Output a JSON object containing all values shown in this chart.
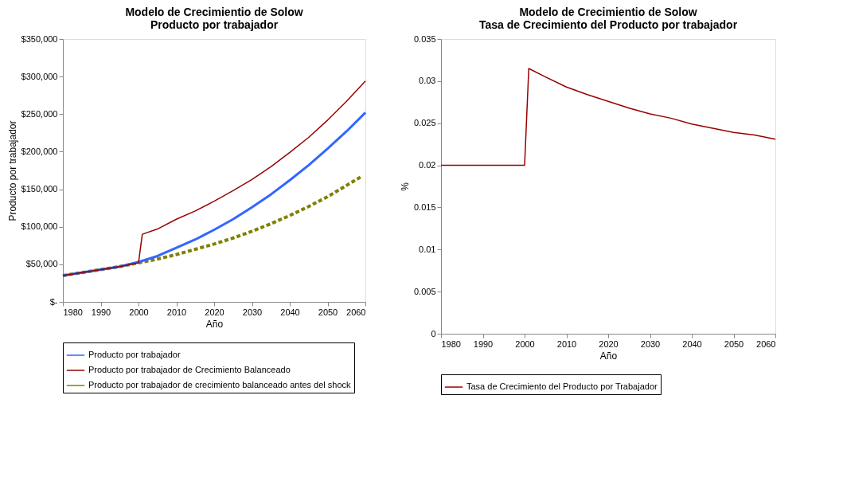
{
  "chart_data": [
    {
      "type": "line",
      "title": [
        "Modelo de Crecimientio de Solow",
        "Producto por trabajador"
      ],
      "xlabel": "Año",
      "ylabel": "Producto por trabajador",
      "xlim": [
        1980,
        2060
      ],
      "xticks": [
        1980,
        1990,
        2000,
        2010,
        2020,
        2030,
        2040,
        2050,
        2060
      ],
      "ylim": [
        0,
        350000
      ],
      "yticks": [
        {
          "value": 0,
          "label": "$-"
        },
        {
          "value": 50000,
          "label": "$50,000"
        },
        {
          "value": 100000,
          "label": "$100,000"
        },
        {
          "value": 150000,
          "label": "$150,000"
        },
        {
          "value": 200000,
          "label": "$200,000"
        },
        {
          "value": 250000,
          "label": "$250,000"
        },
        {
          "value": 300000,
          "label": "$300,000"
        },
        {
          "value": 350000,
          "label": "$350,000"
        }
      ],
      "grid": false,
      "legend": "bottom",
      "series": [
        {
          "name": "Producto por trabajador",
          "color": "#3366ff",
          "line_style": "solid",
          "x": [
            1980,
            1985,
            1990,
            1995,
            2000,
            2005,
            2010,
            2015,
            2020,
            2025,
            2030,
            2035,
            2040,
            2045,
            2050,
            2055,
            2060
          ],
          "values": [
            35000,
            39000,
            43000,
            47000,
            53000,
            61000,
            72000,
            83000,
            96000,
            110000,
            126000,
            143000,
            162000,
            182000,
            204000,
            227000,
            252000
          ]
        },
        {
          "name": "Producto por trabajador de Crecimiento Balanceado",
          "color": "#990000",
          "line_style": "solid",
          "x": [
            1980,
            1985,
            1990,
            1995,
            2000,
            2001,
            2005,
            2010,
            2015,
            2020,
            2025,
            2030,
            2035,
            2040,
            2045,
            2050,
            2055,
            2060
          ],
          "values": [
            35000,
            39000,
            43000,
            47000,
            52000,
            90000,
            97000,
            110000,
            121000,
            134000,
            148000,
            163000,
            180000,
            199000,
            219000,
            242000,
            267000,
            294000
          ]
        },
        {
          "name": "Producto por trabajador de crecimiento balanceado antes del shock",
          "color": "#808000",
          "line_style": "dashed",
          "x": [
            1980,
            1985,
            1990,
            1995,
            2000,
            2005,
            2010,
            2015,
            2020,
            2025,
            2030,
            2035,
            2040,
            2045,
            2050,
            2055,
            2059
          ],
          "values": [
            35000,
            39000,
            43000,
            47000,
            52000,
            57000,
            63000,
            70000,
            77000,
            85000,
            94000,
            104000,
            115000,
            127000,
            140000,
            155000,
            167000
          ]
        }
      ]
    },
    {
      "type": "line",
      "title": [
        "Modelo de Crecimientio de Solow",
        "Tasa de Crecimiento del Producto por trabajador"
      ],
      "xlabel": "Año",
      "ylabel": "%",
      "xlim": [
        1980,
        2060
      ],
      "xticks": [
        1980,
        1990,
        2000,
        2010,
        2020,
        2030,
        2040,
        2050,
        2060
      ],
      "ylim": [
        0,
        0.035
      ],
      "yticks": [
        0,
        0.005,
        0.01,
        0.015,
        0.02,
        0.025,
        0.03,
        0.035
      ],
      "grid": false,
      "legend": "bottom",
      "series": [
        {
          "name": "Tasa de Crecimiento del Producto por Trabajador",
          "color": "#990000",
          "line_style": "solid",
          "x": [
            1980,
            1990,
            2000,
            2001,
            2005,
            2010,
            2015,
            2020,
            2025,
            2030,
            2035,
            2040,
            2045,
            2050,
            2055,
            2060
          ],
          "values": [
            0.02,
            0.02,
            0.02,
            0.0315,
            0.0305,
            0.0293,
            0.0284,
            0.0276,
            0.0268,
            0.0261,
            0.0256,
            0.0249,
            0.0244,
            0.0239,
            0.0236,
            0.0231
          ]
        }
      ]
    }
  ]
}
